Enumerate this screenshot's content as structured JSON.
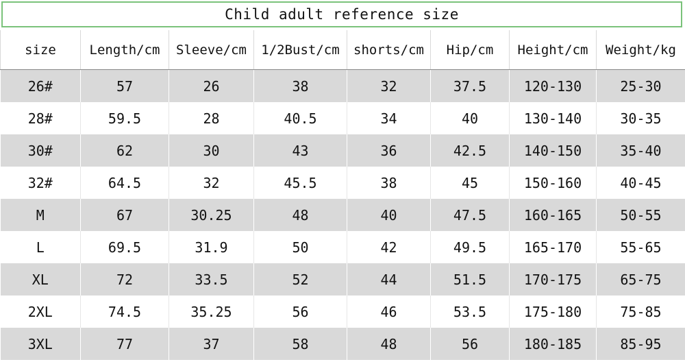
{
  "title": "Child adult reference size",
  "headers": [
    "size",
    "Length/cm",
    "Sleeve/cm",
    "1/2Bust/cm",
    "shorts/cm",
    "Hip/cm",
    "Height/cm",
    "Weight/kg"
  ],
  "rows": [
    [
      "26#",
      "57",
      "26",
      "38",
      "32",
      "37.5",
      "120-130",
      "25-30"
    ],
    [
      "28#",
      "59.5",
      "28",
      "40.5",
      "34",
      "40",
      "130-140",
      "30-35"
    ],
    [
      "30#",
      "62",
      "30",
      "43",
      "36",
      "42.5",
      "140-150",
      "35-40"
    ],
    [
      "32#",
      "64.5",
      "32",
      "45.5",
      "38",
      "45",
      "150-160",
      "40-45"
    ],
    [
      "M",
      "67",
      "30.25",
      "48",
      "40",
      "47.5",
      "160-165",
      "50-55"
    ],
    [
      "L",
      "69.5",
      "31.9",
      "50",
      "42",
      "49.5",
      "165-170",
      "55-65"
    ],
    [
      "XL",
      "72",
      "33.5",
      "52",
      "44",
      "51.5",
      "170-175",
      "65-75"
    ],
    [
      "2XL",
      "74.5",
      "35.25",
      "56",
      "46",
      "53.5",
      "175-180",
      "75-85"
    ],
    [
      "3XL",
      "77",
      "37",
      "58",
      "48",
      "56",
      "180-185",
      "85-95"
    ]
  ],
  "colors": {
    "title_border": "#7ac27a",
    "row_shade": "#d9d9d9",
    "row_plain": "#ffffff"
  }
}
